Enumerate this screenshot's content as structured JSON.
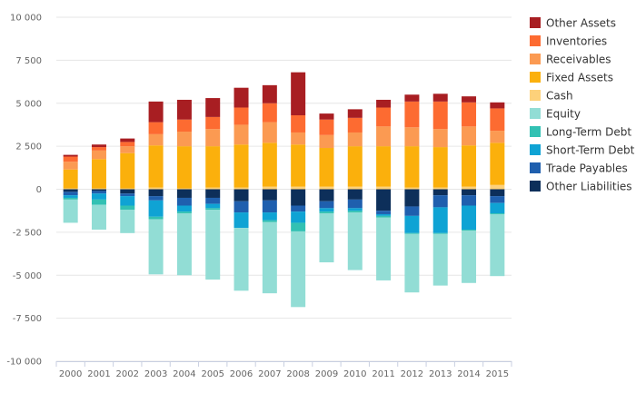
{
  "chart_data": {
    "type": "bar",
    "stacked": true,
    "title": "",
    "xlabel": "",
    "ylabel": "",
    "ylim": [
      -10000,
      10000
    ],
    "yticks": [
      10000,
      7500,
      5000,
      2500,
      0,
      -2500,
      -5000,
      -7500,
      -10000
    ],
    "ytick_labels": [
      "10 000",
      "7 500",
      "5 000",
      "2 500",
      "0",
      "-2 500",
      "-5 000",
      "-7 500",
      "-10 000"
    ],
    "grid": true,
    "legend_position": "right",
    "categories": [
      "2000",
      "2001",
      "2002",
      "2003",
      "2004",
      "2005",
      "2006",
      "2007",
      "2008",
      "2009",
      "2010",
      "2011",
      "2012",
      "2013",
      "2014",
      "2015"
    ],
    "series": [
      {
        "name": "Other Liabilities",
        "color": "#0d2f5a",
        "values": [
          -150,
          -100,
          -250,
          -400,
          -500,
          -500,
          -700,
          -650,
          -950,
          -700,
          -600,
          -1250,
          -1000,
          -350,
          -350,
          -400
        ]
      },
      {
        "name": "Trade Payables",
        "color": "#1f5fae",
        "values": [
          -200,
          -150,
          -150,
          -250,
          -450,
          -350,
          -650,
          -700,
          -350,
          -400,
          -500,
          -200,
          -550,
          -700,
          -600,
          -400
        ]
      },
      {
        "name": "Short-Term Debt",
        "color": "#0fa3d4",
        "values": [
          -150,
          -350,
          -550,
          -950,
          -350,
          -250,
          -900,
          -450,
          -650,
          -200,
          -150,
          -100,
          -1000,
          -1500,
          -1400,
          -600
        ]
      },
      {
        "name": "Long-Term Debt",
        "color": "#32c1b3",
        "values": [
          -100,
          -300,
          -250,
          -150,
          -100,
          -100,
          0,
          -100,
          -500,
          -100,
          -100,
          -100,
          -50,
          -50,
          -50,
          -50
        ]
      },
      {
        "name": "Equity",
        "color": "#92ddd5",
        "values": [
          -1350,
          -1450,
          -1350,
          -3200,
          -3600,
          -4050,
          -3650,
          -4150,
          -4400,
          -2850,
          -3350,
          -3650,
          -3400,
          -3000,
          -3050,
          -3600
        ]
      },
      {
        "name": "Cash",
        "color": "#fdd17a",
        "values": [
          50,
          50,
          50,
          100,
          50,
          100,
          100,
          150,
          150,
          150,
          150,
          150,
          100,
          100,
          150,
          250
        ]
      },
      {
        "name": "Fixed Assets",
        "color": "#fbb00c",
        "values": [
          1100,
          1700,
          2050,
          2450,
          2450,
          2400,
          2500,
          2550,
          2450,
          2250,
          2350,
          2350,
          2400,
          2350,
          2400,
          2450
        ]
      },
      {
        "name": "Receivables",
        "color": "#fb9a52",
        "values": [
          450,
          500,
          400,
          650,
          850,
          1000,
          1150,
          1200,
          700,
          750,
          800,
          1150,
          1100,
          1050,
          1100,
          700
        ]
      },
      {
        "name": "Inventories",
        "color": "#fd6b31",
        "values": [
          300,
          200,
          250,
          700,
          700,
          700,
          1000,
          1100,
          1000,
          900,
          850,
          1100,
          1500,
          1600,
          1400,
          1300
        ]
      },
      {
        "name": "Other Assets",
        "color": "#a81e22",
        "values": [
          100,
          150,
          200,
          1200,
          1150,
          1100,
          1150,
          1050,
          2500,
          350,
          500,
          450,
          400,
          450,
          350,
          350
        ]
      }
    ],
    "legend_order": [
      "Other Assets",
      "Inventories",
      "Receivables",
      "Fixed Assets",
      "Cash",
      "Equity",
      "Long-Term Debt",
      "Short-Term Debt",
      "Trade Payables",
      "Other Liabilities"
    ]
  }
}
